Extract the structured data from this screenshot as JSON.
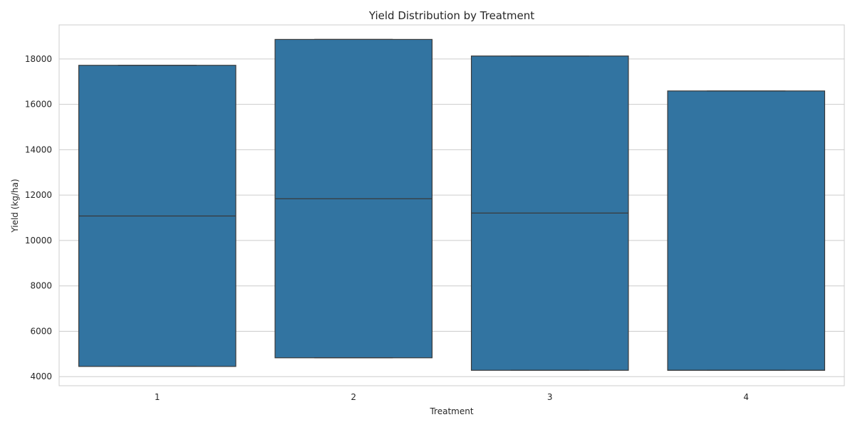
{
  "chart_data": {
    "type": "box",
    "title": "Yield Distribution by Treatment",
    "xlabel": "Treatment",
    "ylabel": "Yield (kg/ha)",
    "categories": [
      "1",
      "2",
      "3",
      "4"
    ],
    "ylim": [
      3600,
      19500
    ],
    "yticks": [
      4000,
      6000,
      8000,
      10000,
      12000,
      14000,
      16000,
      18000
    ],
    "grid": true,
    "boxes": [
      {
        "category": "1",
        "min": 4450,
        "q1": 4450,
        "median": 11080,
        "q3": 17720,
        "max": 17720
      },
      {
        "category": "2",
        "min": 4830,
        "q1": 4830,
        "median": 11840,
        "q3": 18860,
        "max": 18860
      },
      {
        "category": "3",
        "min": 4280,
        "q1": 4280,
        "median": 11210,
        "q3": 18130,
        "max": 18130
      },
      {
        "category": "4",
        "min": 4280,
        "q1": 4280,
        "median": 4280,
        "q3": 16590,
        "max": 16590
      }
    ],
    "colors": {
      "box_fill": "#3274a1",
      "box_edge": "#3a3a3a",
      "grid": "#cccccc",
      "frame": "#cccccc"
    }
  }
}
